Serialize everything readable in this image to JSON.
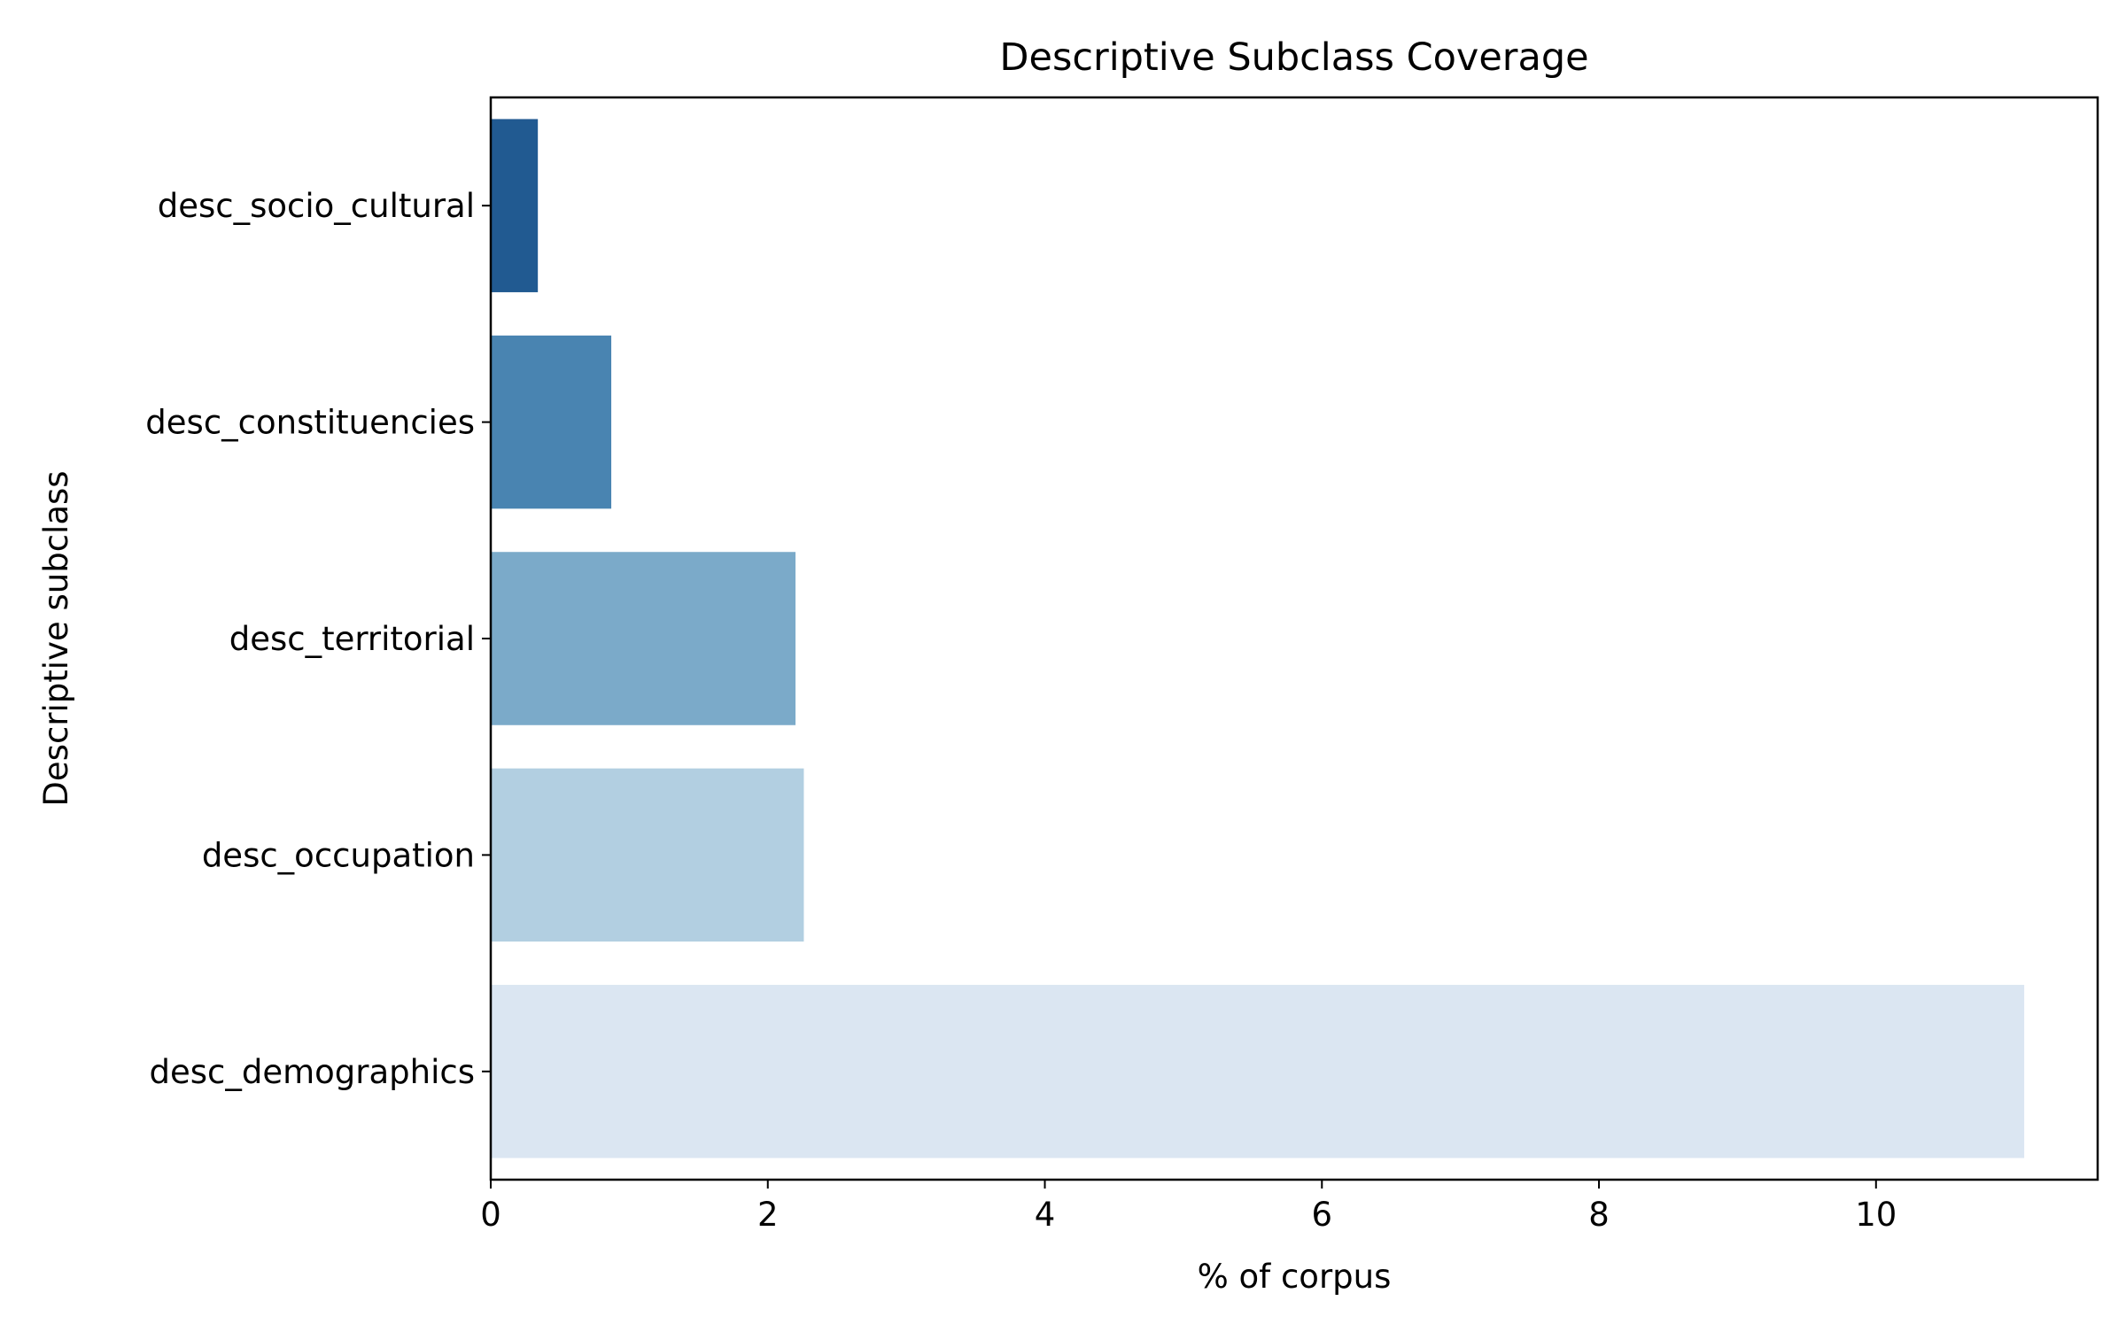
{
  "chart_data": {
    "type": "bar",
    "orientation": "horizontal",
    "title": "Descriptive Subclass Coverage",
    "xlabel": "% of corpus",
    "ylabel": "Descriptive subclass",
    "categories": [
      "desc_socio_cultural",
      "desc_constituencies",
      "desc_territorial",
      "desc_occupation",
      "desc_demographics"
    ],
    "values": [
      0.34,
      0.87,
      2.2,
      2.26,
      11.07
    ],
    "colors": [
      "#215a91",
      "#4984b1",
      "#7baac9",
      "#b2cfe1",
      "#dbe6f2"
    ],
    "xlim": [
      0,
      11.6
    ],
    "xticks": [
      0,
      2,
      4,
      6,
      8,
      10
    ],
    "xtick_labels": [
      "0",
      "2",
      "4",
      "6",
      "8",
      "10"
    ],
    "grid": false,
    "legend": "none"
  }
}
